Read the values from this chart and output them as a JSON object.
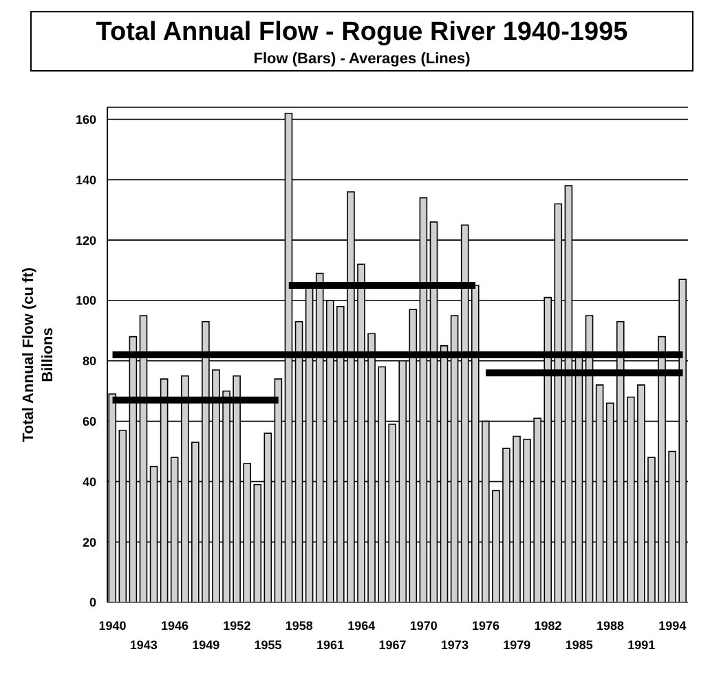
{
  "chart_data": {
    "type": "bar",
    "title": "Total Annual Flow - Rogue River 1940-1995",
    "subtitle": "Flow (Bars)  -  Averages (Lines)",
    "ylabel": "Total Annual Flow (cu ft)\nBillions",
    "categories": [
      "1940",
      null,
      null,
      "1943",
      null,
      null,
      "1946",
      null,
      null,
      "1949",
      null,
      null,
      "1952",
      null,
      null,
      "1955",
      null,
      null,
      "1958",
      null,
      null,
      "1961",
      null,
      null,
      "1964",
      null,
      null,
      "1967",
      null,
      null,
      "1970",
      null,
      null,
      "1973",
      null,
      null,
      "1976",
      null,
      null,
      "1979",
      null,
      null,
      "1982",
      null,
      null,
      "1985",
      null,
      null,
      "1988",
      null,
      null,
      "1991",
      null,
      null,
      "1994",
      null
    ],
    "series": [
      {
        "color": "#d0d0d0",
        "values": [
          69,
          57,
          88,
          95,
          45,
          74,
          48,
          75,
          53,
          93,
          77,
          70,
          75,
          46,
          39,
          56,
          74,
          162,
          93,
          105,
          109,
          100,
          98,
          136,
          112,
          89,
          78,
          59,
          80,
          97,
          134,
          126,
          85,
          95,
          125,
          105,
          60,
          37,
          51,
          55,
          54,
          61,
          101,
          132,
          138,
          83,
          95,
          72,
          66,
          93,
          68,
          72,
          48,
          88,
          50,
          107
        ]
      },
      {
        "type": "line",
        "color": "#000000",
        "values": [
          82,
          82,
          82,
          82,
          82,
          82,
          82,
          82,
          82,
          82,
          82,
          82,
          82,
          82,
          82,
          82,
          82,
          82,
          82,
          82,
          82,
          82,
          82,
          82,
          82,
          82,
          82,
          82,
          82,
          82,
          82,
          82,
          82,
          82,
          82,
          82,
          82,
          82,
          82,
          82,
          82,
          82,
          82,
          82,
          82,
          82,
          82,
          82,
          82,
          82,
          82,
          82,
          82,
          82,
          82,
          82
        ]
      },
      {
        "type": "line",
        "color": "#000000",
        "values": [
          67,
          67,
          67,
          67,
          67,
          67,
          67,
          67,
          67,
          67,
          67,
          67,
          67,
          67,
          67,
          67,
          67,
          null,
          null,
          null,
          null,
          null,
          null,
          null,
          null,
          null,
          null,
          null,
          null,
          null,
          null,
          null,
          null,
          null,
          null,
          null,
          null,
          null,
          null,
          null,
          null,
          null,
          null,
          null,
          null,
          null,
          null,
          null,
          null,
          null,
          null,
          null,
          null,
          null,
          null,
          null
        ]
      },
      {
        "type": "line",
        "color": "#000000",
        "values": [
          null,
          null,
          null,
          null,
          null,
          null,
          null,
          null,
          null,
          null,
          null,
          null,
          null,
          null,
          null,
          null,
          null,
          105,
          105,
          105,
          105,
          105,
          105,
          105,
          105,
          105,
          105,
          105,
          105,
          105,
          105,
          105,
          105,
          105,
          105,
          105,
          null,
          null,
          null,
          null,
          null,
          null,
          null,
          null,
          null,
          null,
          null,
          null,
          null,
          null,
          null,
          null,
          null,
          null,
          null,
          null
        ]
      },
      {
        "type": "line",
        "color": "#000000",
        "values": [
          null,
          null,
          null,
          null,
          null,
          null,
          null,
          null,
          null,
          null,
          null,
          null,
          null,
          null,
          null,
          null,
          null,
          null,
          null,
          null,
          null,
          null,
          null,
          null,
          null,
          null,
          null,
          null,
          null,
          null,
          null,
          null,
          null,
          null,
          null,
          null,
          76,
          76,
          76,
          76,
          76,
          76,
          76,
          76,
          76,
          76,
          76,
          76,
          76,
          76,
          76,
          76,
          76,
          76,
          76,
          76
        ]
      }
    ],
    "ylim": [
      0,
      164
    ],
    "yticks": [
      0,
      20,
      40,
      60,
      80,
      100,
      120,
      140,
      160
    ],
    "grid": "y",
    "legend": false,
    "marker": "none",
    "line_style": "solid"
  }
}
